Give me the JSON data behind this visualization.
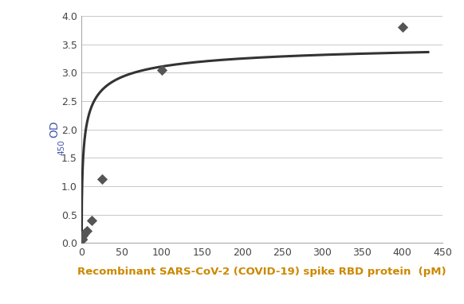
{
  "scatter_x": [
    0.4,
    0.8,
    1.6,
    3.1,
    6.25,
    12.5,
    25,
    100,
    400
  ],
  "scatter_y": [
    0.06,
    0.08,
    0.13,
    0.17,
    0.22,
    0.4,
    1.12,
    3.04,
    3.8
  ],
  "curve_params": {
    "Bmax": 3.6,
    "Kd": 3.5,
    "n": 0.55,
    "base": 0.0
  },
  "marker_color": "#555555",
  "line_color": "#333333",
  "xlabel": "Recombinant SARS-CoV-2 (COVID-19) spike RBD protein  (pM)",
  "xlabel_color": "#cc8800",
  "ylabel_main": "OD",
  "ylabel_sub": "450",
  "ylabel_color": "#4455aa",
  "xlim": [
    0,
    440
  ],
  "ylim": [
    0,
    4.0
  ],
  "xticks": [
    0,
    50,
    100,
    150,
    200,
    250,
    300,
    350,
    400,
    450
  ],
  "yticks": [
    0,
    0.5,
    1.0,
    1.5,
    2.0,
    2.5,
    3.0,
    3.5,
    4.0
  ],
  "background_color": "#ffffff",
  "grid_color": "#c8c8c8"
}
